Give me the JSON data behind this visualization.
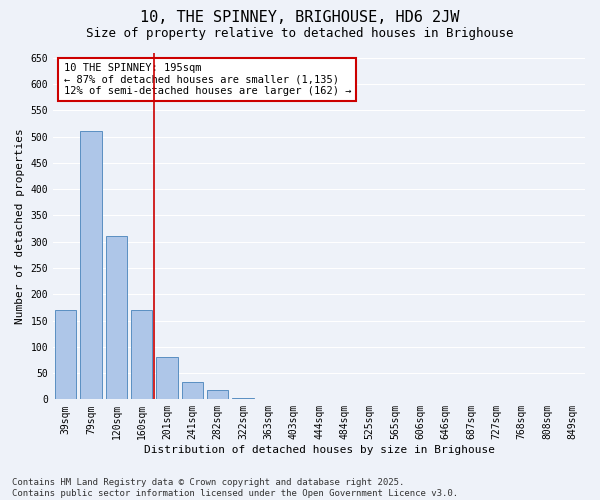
{
  "title": "10, THE SPINNEY, BRIGHOUSE, HD6 2JW",
  "subtitle": "Size of property relative to detached houses in Brighouse",
  "xlabel": "Distribution of detached houses by size in Brighouse",
  "ylabel": "Number of detached properties",
  "categories": [
    "39sqm",
    "79sqm",
    "120sqm",
    "160sqm",
    "201sqm",
    "241sqm",
    "282sqm",
    "322sqm",
    "363sqm",
    "403sqm",
    "444sqm",
    "484sqm",
    "525sqm",
    "565sqm",
    "606sqm",
    "646sqm",
    "687sqm",
    "727sqm",
    "768sqm",
    "808sqm",
    "849sqm"
  ],
  "values": [
    170,
    510,
    310,
    170,
    80,
    33,
    18,
    2,
    0,
    0,
    0,
    0,
    0,
    0,
    0,
    0,
    0,
    0,
    0,
    0,
    0
  ],
  "bar_color": "#aec6e8",
  "bar_edge_color": "#5a8fc2",
  "vline_color": "#cc0000",
  "annotation_text": "10 THE SPINNEY: 195sqm\n← 87% of detached houses are smaller (1,135)\n12% of semi-detached houses are larger (162) →",
  "annotation_box_color": "#cc0000",
  "annotation_text_color": "#000000",
  "ylim": [
    0,
    660
  ],
  "yticks": [
    0,
    50,
    100,
    150,
    200,
    250,
    300,
    350,
    400,
    450,
    500,
    550,
    600,
    650
  ],
  "bg_color": "#eef2f9",
  "grid_color": "#ffffff",
  "footer": "Contains HM Land Registry data © Crown copyright and database right 2025.\nContains public sector information licensed under the Open Government Licence v3.0.",
  "title_fontsize": 11,
  "subtitle_fontsize": 9,
  "axis_label_fontsize": 8,
  "tick_fontsize": 7,
  "annotation_fontsize": 7.5,
  "footer_fontsize": 6.5
}
